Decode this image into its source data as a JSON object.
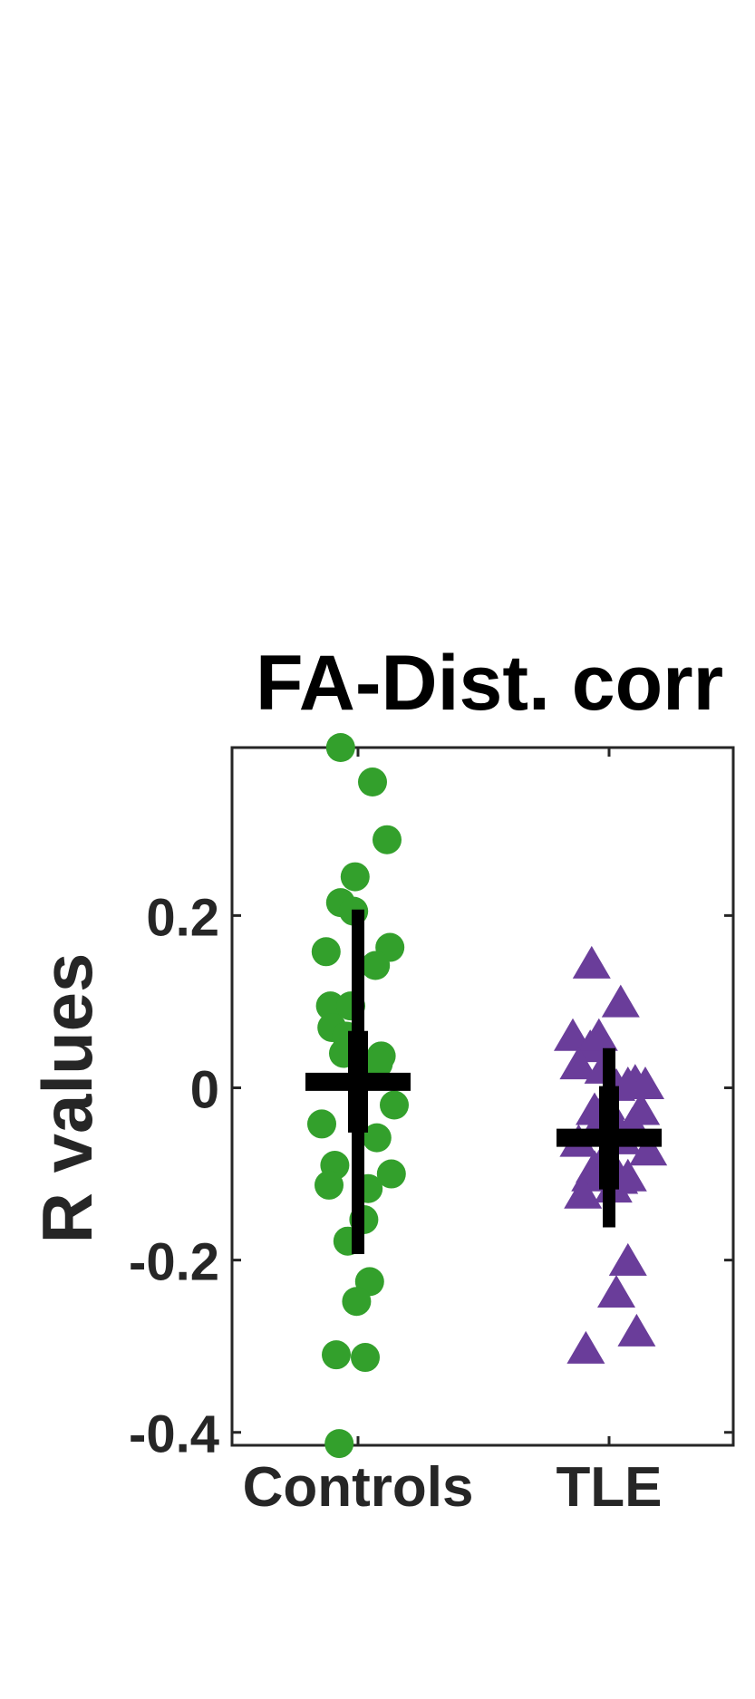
{
  "chart_data": {
    "type": "scatter",
    "title": "FA-Dist. corr",
    "xlabel": "",
    "ylabel": "R values",
    "categories": [
      "Controls",
      "TLE"
    ],
    "ylim": [
      -0.415,
      0.395
    ],
    "yticks": [
      -0.4,
      -0.2,
      0,
      0.2
    ],
    "ytick_labels": [
      "-0.4",
      "-0.2",
      "0",
      "0.2"
    ],
    "grid": false,
    "colors": {
      "Controls": "#33a02c",
      "TLE": "#6a3d9a",
      "summary": "#000000",
      "axis": "#262626"
    },
    "series": [
      {
        "category": "Controls",
        "marker": "circle",
        "points": [
          [
            -0.12,
            0.395
          ],
          [
            0.1,
            0.355
          ],
          [
            0.2,
            0.288
          ],
          [
            -0.02,
            0.245
          ],
          [
            -0.12,
            0.215
          ],
          [
            -0.03,
            0.205
          ],
          [
            -0.22,
            0.158
          ],
          [
            0.22,
            0.163
          ],
          [
            0.12,
            0.142
          ],
          [
            -0.19,
            0.095
          ],
          [
            -0.05,
            0.095
          ],
          [
            -0.18,
            0.07
          ],
          [
            -0.08,
            0.06
          ],
          [
            -0.1,
            0.04
          ],
          [
            0.16,
            0.037
          ],
          [
            0.03,
            0.028
          ],
          [
            0.14,
            0.028
          ],
          [
            0.25,
            -0.02
          ],
          [
            -0.25,
            -0.042
          ],
          [
            0.13,
            -0.058
          ],
          [
            -0.16,
            -0.09
          ],
          [
            -0.2,
            -0.113
          ],
          [
            0.23,
            -0.1
          ],
          [
            0.07,
            -0.117
          ],
          [
            0.04,
            -0.153
          ],
          [
            -0.07,
            -0.178
          ],
          [
            0.08,
            -0.225
          ],
          [
            -0.01,
            -0.248
          ],
          [
            -0.15,
            -0.31
          ],
          [
            0.05,
            -0.313
          ],
          [
            -0.13,
            -0.413
          ]
        ]
      },
      {
        "category": "TLE",
        "marker": "triangle",
        "points": [
          [
            -0.12,
            0.142
          ],
          [
            0.08,
            0.097
          ],
          [
            -0.25,
            0.058
          ],
          [
            -0.13,
            0.045
          ],
          [
            -0.07,
            0.058
          ],
          [
            -0.21,
            0.025
          ],
          [
            -0.04,
            0.02
          ],
          [
            0.18,
            0.005
          ],
          [
            0.13,
            0.002
          ],
          [
            0.05,
            0.0
          ],
          [
            0.25,
            0.002
          ],
          [
            0.22,
            -0.028
          ],
          [
            -0.1,
            -0.028
          ],
          [
            -0.02,
            -0.022
          ],
          [
            0.03,
            -0.04
          ],
          [
            0.16,
            -0.045
          ],
          [
            -0.09,
            -0.05
          ],
          [
            0.09,
            -0.062
          ],
          [
            -0.21,
            -0.065
          ],
          [
            0.27,
            -0.075
          ],
          [
            -0.02,
            -0.08
          ],
          [
            -0.1,
            -0.095
          ],
          [
            -0.13,
            -0.105
          ],
          [
            0.07,
            -0.108
          ],
          [
            0.03,
            -0.118
          ],
          [
            -0.18,
            -0.125
          ],
          [
            0.13,
            -0.105
          ],
          [
            0.13,
            -0.203
          ],
          [
            0.05,
            -0.24
          ],
          [
            0.19,
            -0.285
          ],
          [
            -0.16,
            -0.305
          ]
        ]
      }
    ],
    "summary": [
      {
        "category": "Controls",
        "mean": 0.007,
        "lower": -0.193,
        "upper": 0.207,
        "ci_lower": -0.052,
        "ci_upper": 0.066
      },
      {
        "category": "TLE",
        "mean": -0.058,
        "lower": -0.162,
        "upper": 0.046,
        "ci_lower": -0.118,
        "ci_upper": 0.002
      }
    ]
  }
}
